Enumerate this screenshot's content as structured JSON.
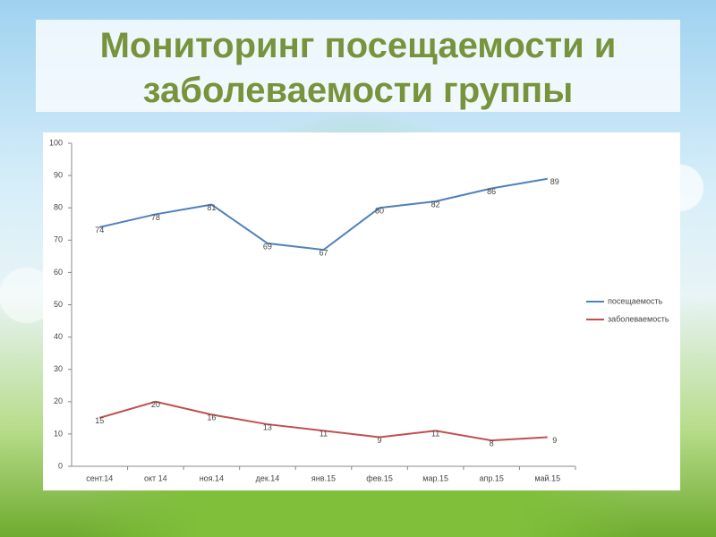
{
  "chart_data": {
    "type": "line",
    "title": "Мониторинг посещаемости и заболеваемости группы",
    "categories": [
      "сент.14",
      "окт 14",
      "ноя.14",
      "дек.14",
      "янв.15",
      "фев.15",
      "мар.15",
      "апр.15",
      "май.15"
    ],
    "series": [
      {
        "name": "посещаемость",
        "color": "#4f81bd",
        "values": [
          74,
          78,
          81,
          69,
          67,
          80,
          82,
          86,
          89
        ]
      },
      {
        "name": "заболеваемость",
        "color": "#c0504d",
        "values": [
          15,
          20,
          16,
          13,
          11,
          9,
          11,
          8,
          9
        ]
      }
    ],
    "ylim": [
      0,
      100
    ],
    "yticks": [
      0,
      10,
      20,
      30,
      40,
      50,
      60,
      70,
      80,
      90,
      100
    ],
    "grid": false,
    "legend": "right"
  }
}
